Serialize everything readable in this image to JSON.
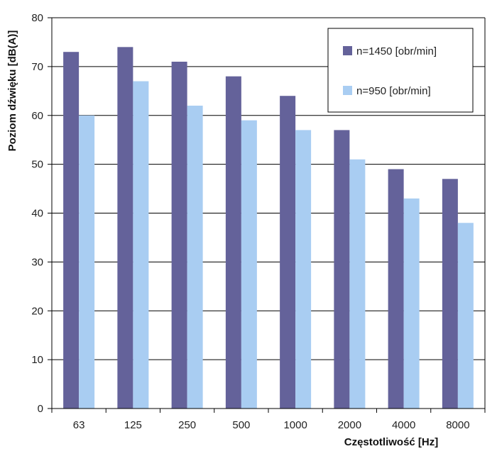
{
  "chart_data": {
    "type": "bar",
    "categories": [
      "63",
      "125",
      "250",
      "500",
      "1000",
      "2000",
      "4000",
      "8000"
    ],
    "series": [
      {
        "name": "n=1450 [obr/min]",
        "color": "#64629a",
        "values": [
          73,
          74,
          71,
          68,
          64,
          57,
          49,
          47
        ]
      },
      {
        "name": "n=950 [obr/min]",
        "color": "#a9cdf2",
        "values": [
          60,
          67,
          62,
          59,
          57,
          51,
          43,
          38
        ]
      }
    ],
    "xlabel": "Częstotliwość [Hz]",
    "ylabel": "Poziom dźwięku [dB(A)]",
    "ylim": [
      0,
      80
    ],
    "yticks": [
      "0",
      "10",
      "20",
      "30",
      "40",
      "50",
      "60",
      "70",
      "80"
    ],
    "grid": true,
    "legend_position": "top-right"
  }
}
